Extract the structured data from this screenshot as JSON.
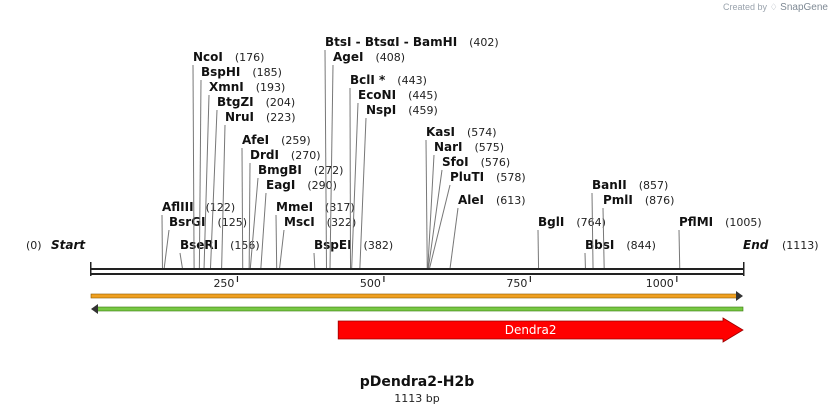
{
  "credit": {
    "prefix": "Created by",
    "brand": "SnapGene"
  },
  "plasmid": {
    "name": "pDendra2-H2b",
    "length_label": "1113 bp",
    "length": 1113
  },
  "colors": {
    "feature": "#ff0000",
    "orange_bar": "#f0a020",
    "green_bar": "#77c843"
  },
  "start_label": "Start",
  "start_pos": "(0)",
  "end_label": "End",
  "end_pos": "(1113)",
  "axis_ticks": [
    250,
    500,
    750,
    1000
  ],
  "sites": [
    {
      "name": "AflIII",
      "pos": "(122)",
      "value": 122
    },
    {
      "name": "BsrGI",
      "pos": "(125)",
      "value": 125
    },
    {
      "name": "BseRI",
      "pos": "(156)",
      "value": 156
    },
    {
      "name": "NcoI",
      "pos": "(176)",
      "value": 176
    },
    {
      "name": "BspHI",
      "pos": "(185)",
      "value": 185
    },
    {
      "name": "XmnI",
      "pos": "(193)",
      "value": 193
    },
    {
      "name": "BtgZI",
      "pos": "(204)",
      "value": 204
    },
    {
      "name": "NruI",
      "pos": "(223)",
      "value": 223
    },
    {
      "name": "AfeI",
      "pos": "(259)",
      "value": 259
    },
    {
      "name": "DrdI",
      "pos": "(270)",
      "value": 270
    },
    {
      "name": "BmgBI",
      "pos": "(272)",
      "value": 272
    },
    {
      "name": "EagI",
      "pos": "(290)",
      "value": 290
    },
    {
      "name": "MmeI",
      "pos": "(317)",
      "value": 317
    },
    {
      "name": "MscI",
      "pos": "(322)",
      "value": 322
    },
    {
      "name": "BspEI",
      "pos": "(382)",
      "value": 382
    },
    {
      "name": "BtsI - BtsαI - BamHI",
      "pos": "(402)",
      "value": 402
    },
    {
      "name": "AgeI",
      "pos": "(408)",
      "value": 408
    },
    {
      "name": "BclI *",
      "pos": "(443)",
      "value": 443
    },
    {
      "name": "EcoNI",
      "pos": "(445)",
      "value": 445
    },
    {
      "name": "NspI",
      "pos": "(459)",
      "value": 459
    },
    {
      "name": "KasI",
      "pos": "(574)",
      "value": 574
    },
    {
      "name": "NarI",
      "pos": "(575)",
      "value": 575
    },
    {
      "name": "SfoI",
      "pos": "(576)",
      "value": 576
    },
    {
      "name": "PluTI",
      "pos": "(578)",
      "value": 578
    },
    {
      "name": "AleI",
      "pos": "(613)",
      "value": 613
    },
    {
      "name": "BglI",
      "pos": "(764)",
      "value": 764
    },
    {
      "name": "BbsI",
      "pos": "(844)",
      "value": 844
    },
    {
      "name": "BanII",
      "pos": "(857)",
      "value": 857
    },
    {
      "name": "PmlI",
      "pos": "(876)",
      "value": 876
    },
    {
      "name": "PflMI",
      "pos": "(1005)",
      "value": 1005
    }
  ],
  "features": [
    {
      "name": "Dendra2",
      "start": 422,
      "end": 1113,
      "color": "#ff0000"
    }
  ]
}
